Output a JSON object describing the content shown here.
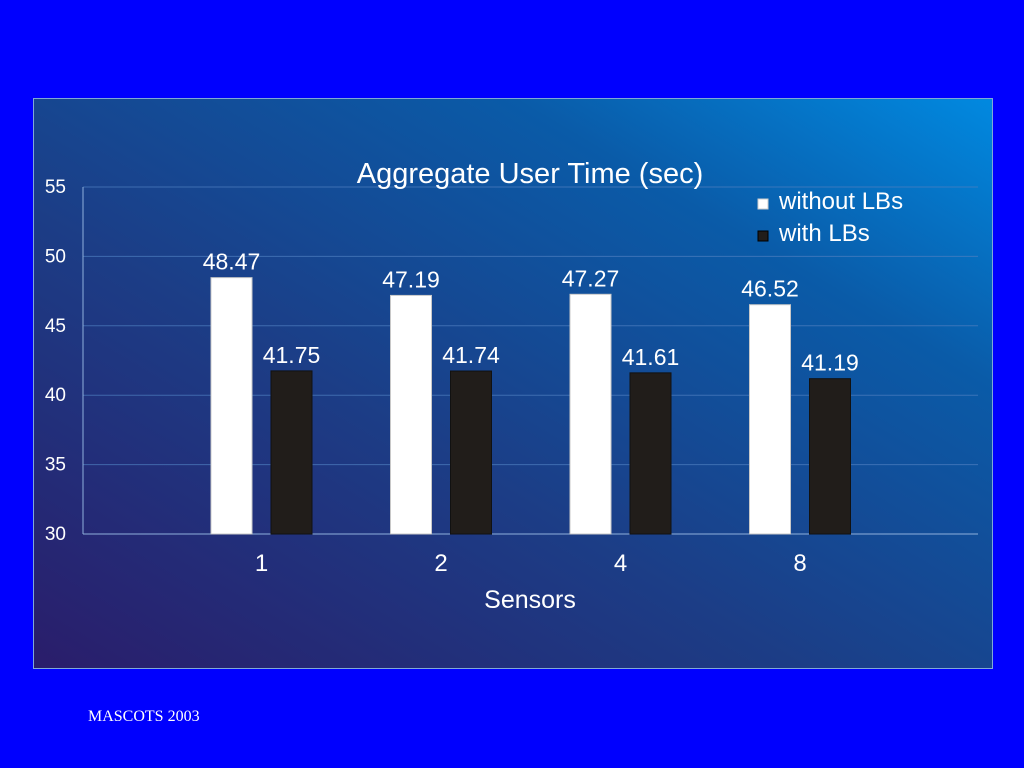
{
  "footer": {
    "text": "MASCOTS 2003"
  },
  "colors": {
    "background": "#0000fe",
    "series_without": "#ffffff",
    "series_with": "#211d1a"
  },
  "chart_data": {
    "type": "bar",
    "title": "Aggregate User Time (sec)",
    "xlabel": "Sensors",
    "ylabel": "",
    "categories": [
      "1",
      "2",
      "4",
      "8"
    ],
    "series": [
      {
        "name": "without LBs",
        "values": [
          48.47,
          47.19,
          47.27,
          46.52
        ],
        "color": "#ffffff"
      },
      {
        "name": "with LBs",
        "values": [
          41.75,
          41.74,
          41.61,
          41.19
        ],
        "color": "#211d1a"
      }
    ],
    "ylim": [
      30,
      55
    ],
    "yticks": [
      30,
      35,
      40,
      45,
      50,
      55
    ],
    "grid": true,
    "legend": "top-right"
  }
}
